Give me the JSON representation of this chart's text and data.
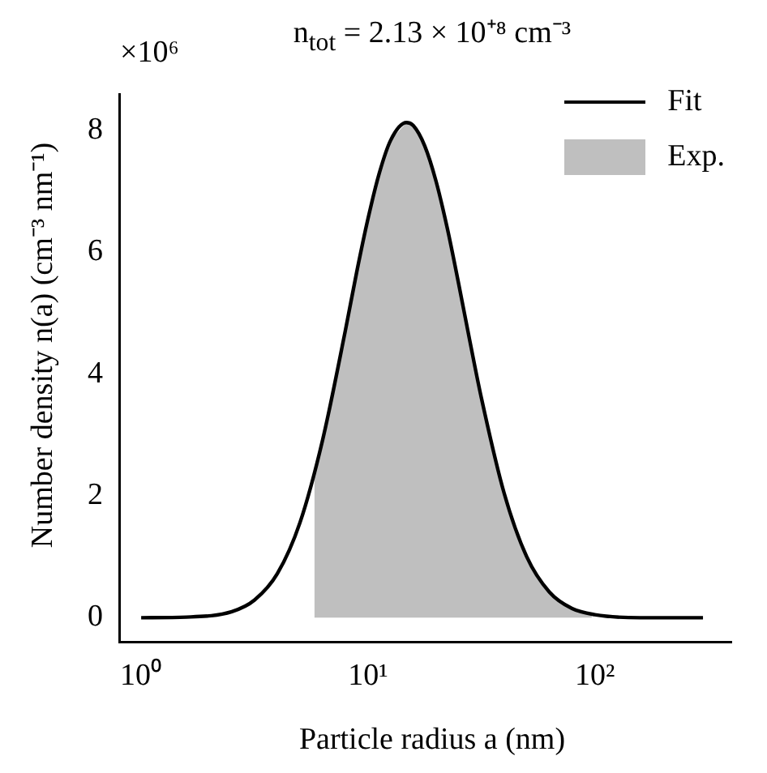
{
  "chart_data": {
    "type": "line",
    "title": "n$_{tot}$ = 2.13 × 10⁺⁸ cm⁻³",
    "xlabel": "Particle radius a (nm)",
    "ylabel": "Number density n(a) (cm⁻³ nm⁻¹)",
    "annotations": [
      "×10⁶"
    ],
    "log": "x",
    "grid": false,
    "legend": "top right",
    "marker": "none",
    "xlim": [
      0.8,
      400
    ],
    "xticks": [
      {
        "value": 1,
        "label": "10⁰"
      },
      {
        "value": 10,
        "label": "10¹"
      },
      {
        "value": 100,
        "label": "10²"
      }
    ],
    "ylim": [
      -0.4,
      8.6
    ],
    "yticks": [
      0,
      2,
      4,
      6,
      8
    ],
    "series": [
      {
        "name": "Fit",
        "color": "#000000",
        "x": [
          1,
          1.585,
          2.512,
          3.162,
          3.981,
          5.012,
          6.31,
          7.943,
          8.913,
          10,
          11.22,
          12.59,
          14.79,
          15.85,
          17.78,
          19.95,
          22.39,
          25.12,
          28.18,
          31.62,
          39.81,
          50.12,
          63.1,
          79.43,
          100,
          158.5,
          300
        ],
        "values": [
          0,
          0.01,
          0.1,
          0.29,
          0.72,
          1.56,
          2.92,
          4.71,
          5.67,
          6.55,
          7.3,
          7.84,
          8.13,
          8.08,
          7.75,
          7.17,
          6.39,
          5.48,
          4.53,
          3.61,
          2.05,
          1,
          0.42,
          0.15,
          0.05,
          0,
          0
        ]
      },
      {
        "name": "Exp.",
        "type": "area",
        "color": "#bfbfbf",
        "x": [
          5.8,
          5.8,
          6.31,
          7.943,
          8.913,
          10,
          11.22,
          12.59,
          14.79,
          15.85,
          17.78,
          19.95,
          22.39,
          25.12,
          28.18,
          31.62,
          39.81,
          50.12,
          63.1,
          79.43,
          97,
          97
        ],
        "values": [
          0,
          2.3,
          2.92,
          4.71,
          5.67,
          6.55,
          7.3,
          7.84,
          8.13,
          8.08,
          7.75,
          7.17,
          6.39,
          5.48,
          4.53,
          3.61,
          2.05,
          1,
          0.42,
          0.15,
          0.05,
          0
        ]
      }
    ]
  }
}
